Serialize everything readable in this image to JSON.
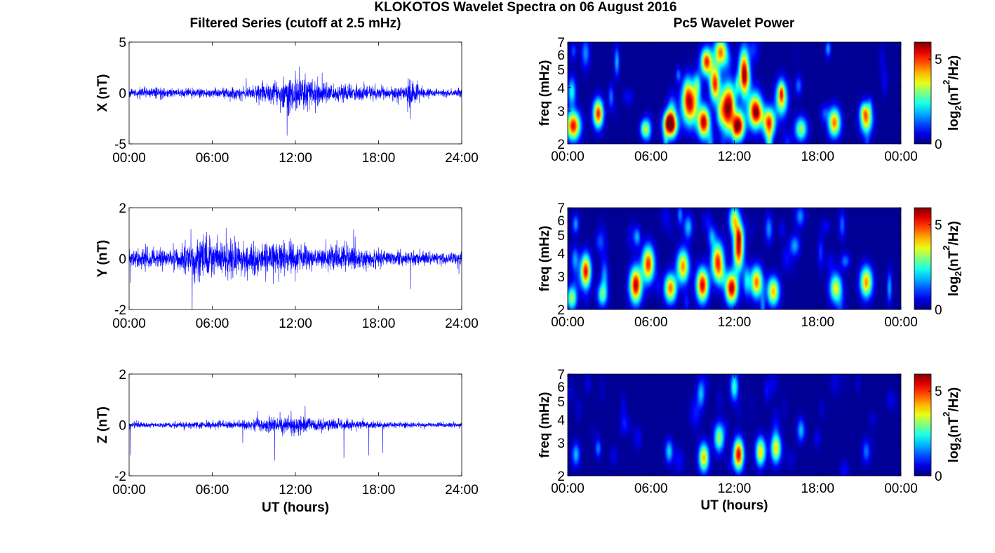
{
  "figure": {
    "title": "KLOKOTOS Wavelet Spectra on 06 August 2016",
    "left_column_title": "Filtered Series (cutoff at 2.5 mHz)",
    "right_column_title": "Pc5 Wavelet Power",
    "trace_color": "#0000ff"
  },
  "chart_data": [
    {
      "type": "line",
      "name": "X-filtered",
      "ylabel": "X (nT)",
      "xlabel": "",
      "ylim": [
        -5,
        5
      ],
      "yticks": [
        "5",
        "0",
        "-5"
      ],
      "xticks": [
        "00:00",
        "06:00",
        "12:00",
        "18:00",
        "24:00"
      ],
      "xlim_hours": [
        0,
        24
      ],
      "amplitude_envelope": {
        "hours": [
          0,
          2,
          4,
          6,
          8,
          10,
          11,
          12,
          12.5,
          13,
          14,
          16,
          18,
          20,
          20.3,
          21,
          22,
          24
        ],
        "abs_nT": [
          0.4,
          0.6,
          0.4,
          0.5,
          0.6,
          1.0,
          1.4,
          2.0,
          2.4,
          1.6,
          1.2,
          0.9,
          0.6,
          0.7,
          2.0,
          0.6,
          0.4,
          0.4
        ]
      },
      "spikes": [
        {
          "hour": 12.0,
          "value": 2.2
        },
        {
          "hour": 12.6,
          "value": -1.6
        },
        {
          "hour": 20.1,
          "value": -1.9
        },
        {
          "hour": 11.1,
          "value": -1.4
        }
      ]
    },
    {
      "type": "line",
      "name": "Y-filtered",
      "ylabel": "Y (nT)",
      "xlabel": "",
      "ylim": [
        -2,
        2
      ],
      "yticks": [
        "2",
        "0",
        "-2"
      ],
      "xticks": [
        "00:00",
        "06:00",
        "12:00",
        "18:00",
        "24:00"
      ],
      "xlim_hours": [
        0,
        24
      ],
      "amplitude_envelope": {
        "hours": [
          0,
          1,
          3,
          4.5,
          5.5,
          7,
          8,
          10,
          11,
          12,
          13,
          14,
          15.5,
          17,
          19,
          20.5,
          22,
          24
        ],
        "abs_nT": [
          0.35,
          0.4,
          0.35,
          0.8,
          0.85,
          0.7,
          0.55,
          0.7,
          0.65,
          0.55,
          0.45,
          0.4,
          0.6,
          0.4,
          0.3,
          0.35,
          0.3,
          0.3
        ]
      },
      "spikes": [
        {
          "hour": 0.1,
          "value": -0.95
        },
        {
          "hour": 4.7,
          "value": -0.9
        },
        {
          "hour": 5.6,
          "value": 1.05
        },
        {
          "hour": 7.0,
          "value": 1.2
        },
        {
          "hour": 16.2,
          "value": 1.15
        },
        {
          "hour": 10.4,
          "value": -1.0
        },
        {
          "hour": 20.3,
          "value": -1.2
        },
        {
          "hour": 23.8,
          "value": -0.6
        }
      ]
    },
    {
      "type": "line",
      "name": "Z-filtered",
      "ylabel": "Z (nT)",
      "xlabel": "UT (hours)",
      "ylim": [
        -2,
        2
      ],
      "yticks": [
        "2",
        "0",
        "-2"
      ],
      "xticks": [
        "00:00",
        "06:00",
        "12:00",
        "18:00",
        "24:00"
      ],
      "xlim_hours": [
        0,
        24
      ],
      "amplitude_envelope": {
        "hours": [
          0,
          3,
          6,
          8,
          10,
          11,
          12,
          13,
          14,
          15,
          16,
          18,
          20,
          22,
          24
        ],
        "abs_nT": [
          0.12,
          0.12,
          0.15,
          0.15,
          0.3,
          0.35,
          0.4,
          0.3,
          0.25,
          0.25,
          0.2,
          0.15,
          0.12,
          0.1,
          0.1
        ]
      },
      "spikes": [
        {
          "hour": 10.5,
          "value": -1.4
        },
        {
          "hour": 12.7,
          "value": 0.75
        },
        {
          "hour": 15.5,
          "value": -1.3
        },
        {
          "hour": 17.3,
          "value": -1.2
        },
        {
          "hour": 18.3,
          "value": -1.1
        },
        {
          "hour": 0.1,
          "value": -1.2
        },
        {
          "hour": 8.2,
          "value": -0.7
        }
      ]
    },
    {
      "type": "heatmap",
      "name": "X-wavelet",
      "ylabel": "freq (mHz)",
      "xlabel": "",
      "yscale": "log",
      "ylim_mHz": [
        2,
        7
      ],
      "yticks": [
        "7",
        "6",
        "5",
        "4",
        "3",
        "2"
      ],
      "xticks": [
        "00:00",
        "06:00",
        "12:00",
        "18:00",
        "00:00"
      ],
      "xlim_hours": [
        0,
        24
      ],
      "colormap": "jet",
      "colorbar_label": "log2(nT2/Hz)",
      "colorbar_ticks": [
        "5",
        "0"
      ],
      "clim": [
        0,
        6
      ],
      "blobs": [
        {
          "t": 0.4,
          "f": 2.5,
          "a": 5.8,
          "st": 0.35,
          "sf": 0.12
        },
        {
          "t": 2.2,
          "f": 2.9,
          "a": 5.6,
          "st": 0.25,
          "sf": 0.12
        },
        {
          "t": 0.3,
          "f": 3.8,
          "a": 2.5,
          "st": 0.2,
          "sf": 0.12
        },
        {
          "t": 5.5,
          "f": 2.4,
          "a": 3.0,
          "st": 0.2,
          "sf": 0.08
        },
        {
          "t": 7.4,
          "f": 2.5,
          "a": 5.0,
          "st": 0.35,
          "sf": 0.1
        },
        {
          "t": 8.8,
          "f": 3.3,
          "a": 6.0,
          "st": 0.4,
          "sf": 0.18
        },
        {
          "t": 9.8,
          "f": 2.6,
          "a": 6.2,
          "st": 0.3,
          "sf": 0.13
        },
        {
          "t": 10.6,
          "f": 4.2,
          "a": 5.5,
          "st": 0.25,
          "sf": 0.15
        },
        {
          "t": 11.5,
          "f": 3.1,
          "a": 6.5,
          "st": 0.35,
          "sf": 0.2
        },
        {
          "t": 12.3,
          "f": 2.5,
          "a": 6.5,
          "st": 0.3,
          "sf": 0.12
        },
        {
          "t": 12.7,
          "f": 4.8,
          "a": 6.0,
          "st": 0.25,
          "sf": 0.2
        },
        {
          "t": 13.5,
          "f": 3.0,
          "a": 6.0,
          "st": 0.35,
          "sf": 0.15
        },
        {
          "t": 14.5,
          "f": 2.6,
          "a": 5.5,
          "st": 0.3,
          "sf": 0.12
        },
        {
          "t": 15.4,
          "f": 3.5,
          "a": 4.2,
          "st": 0.3,
          "sf": 0.15
        },
        {
          "t": 16.8,
          "f": 2.4,
          "a": 3.5,
          "st": 0.3,
          "sf": 0.1
        },
        {
          "t": 19.2,
          "f": 2.6,
          "a": 5.0,
          "st": 0.3,
          "sf": 0.12
        },
        {
          "t": 21.5,
          "f": 2.7,
          "a": 4.5,
          "st": 0.3,
          "sf": 0.12
        },
        {
          "t": 11.0,
          "f": 6.2,
          "a": 4.8,
          "st": 0.3,
          "sf": 0.12
        },
        {
          "t": 10.0,
          "f": 5.5,
          "a": 4.5,
          "st": 0.3,
          "sf": 0.12
        }
      ]
    },
    {
      "type": "heatmap",
      "name": "Y-wavelet",
      "ylabel": "freq (mHz)",
      "xlabel": "",
      "yscale": "log",
      "ylim_mHz": [
        2,
        7
      ],
      "yticks": [
        "7",
        "6",
        "5",
        "4",
        "3",
        "2"
      ],
      "xticks": [
        "00:00",
        "06:00",
        "12:00",
        "18:00",
        "00:00"
      ],
      "xlim_hours": [
        0,
        24
      ],
      "colormap": "jet",
      "colorbar_label": "log2(nT2/Hz)",
      "colorbar_ticks": [
        "5",
        "0"
      ],
      "clim": [
        0,
        6
      ],
      "blobs": [
        {
          "t": 1.3,
          "f": 3.2,
          "a": 5.8,
          "st": 0.25,
          "sf": 0.14
        },
        {
          "t": 0.3,
          "f": 2.3,
          "a": 3.5,
          "st": 0.25,
          "sf": 0.1
        },
        {
          "t": 2.5,
          "f": 2.4,
          "a": 3.0,
          "st": 0.25,
          "sf": 0.1
        },
        {
          "t": 4.9,
          "f": 2.7,
          "a": 6.2,
          "st": 0.3,
          "sf": 0.15
        },
        {
          "t": 5.8,
          "f": 3.5,
          "a": 5.5,
          "st": 0.3,
          "sf": 0.15
        },
        {
          "t": 7.4,
          "f": 2.6,
          "a": 5.0,
          "st": 0.3,
          "sf": 0.12
        },
        {
          "t": 8.3,
          "f": 3.4,
          "a": 4.8,
          "st": 0.3,
          "sf": 0.14
        },
        {
          "t": 9.7,
          "f": 2.7,
          "a": 6.0,
          "st": 0.3,
          "sf": 0.14
        },
        {
          "t": 10.8,
          "f": 3.6,
          "a": 5.5,
          "st": 0.3,
          "sf": 0.16
        },
        {
          "t": 11.8,
          "f": 2.6,
          "a": 6.3,
          "st": 0.3,
          "sf": 0.13
        },
        {
          "t": 12.3,
          "f": 4.2,
          "a": 5.8,
          "st": 0.25,
          "sf": 0.18
        },
        {
          "t": 13.6,
          "f": 2.8,
          "a": 5.0,
          "st": 0.3,
          "sf": 0.13
        },
        {
          "t": 14.8,
          "f": 2.5,
          "a": 4.5,
          "st": 0.3,
          "sf": 0.12
        },
        {
          "t": 19.3,
          "f": 2.6,
          "a": 4.0,
          "st": 0.3,
          "sf": 0.12
        },
        {
          "t": 21.5,
          "f": 2.8,
          "a": 4.8,
          "st": 0.3,
          "sf": 0.13
        },
        {
          "t": 12.0,
          "f": 6.0,
          "a": 4.0,
          "st": 0.25,
          "sf": 0.12
        }
      ]
    },
    {
      "type": "heatmap",
      "name": "Z-wavelet",
      "ylabel": "freq (mHz)",
      "xlabel": "UT (hours)",
      "yscale": "log",
      "ylim_mHz": [
        2,
        7
      ],
      "yticks": [
        "7",
        "6",
        "5",
        "4",
        "3",
        "2"
      ],
      "xticks": [
        "00:00",
        "06:00",
        "12:00",
        "18:00",
        "00:00"
      ],
      "xlim_hours": [
        0,
        24
      ],
      "colormap": "jet",
      "colorbar_label": "log2(nT2/Hz)",
      "colorbar_ticks": [
        "5",
        "0"
      ],
      "clim": [
        0,
        6
      ],
      "blobs": [
        {
          "t": 0.6,
          "f": 2.6,
          "a": 2.0,
          "st": 0.2,
          "sf": 0.1
        },
        {
          "t": 2.2,
          "f": 2.8,
          "a": 1.6,
          "st": 0.15,
          "sf": 0.08
        },
        {
          "t": 7.3,
          "f": 2.7,
          "a": 2.2,
          "st": 0.2,
          "sf": 0.1
        },
        {
          "t": 9.8,
          "f": 2.5,
          "a": 4.5,
          "st": 0.25,
          "sf": 0.12
        },
        {
          "t": 10.9,
          "f": 3.2,
          "a": 3.5,
          "st": 0.25,
          "sf": 0.12
        },
        {
          "t": 12.3,
          "f": 2.6,
          "a": 6.0,
          "st": 0.25,
          "sf": 0.13
        },
        {
          "t": 13.9,
          "f": 2.7,
          "a": 4.0,
          "st": 0.25,
          "sf": 0.12
        },
        {
          "t": 15.0,
          "f": 2.8,
          "a": 4.2,
          "st": 0.25,
          "sf": 0.12
        },
        {
          "t": 16.8,
          "f": 3.5,
          "a": 2.0,
          "st": 0.2,
          "sf": 0.1
        },
        {
          "t": 12.0,
          "f": 6.0,
          "a": 2.5,
          "st": 0.2,
          "sf": 0.12
        },
        {
          "t": 9.6,
          "f": 5.5,
          "a": 2.0,
          "st": 0.2,
          "sf": 0.12
        },
        {
          "t": 21.5,
          "f": 2.7,
          "a": 1.5,
          "st": 0.2,
          "sf": 0.1
        }
      ]
    }
  ]
}
